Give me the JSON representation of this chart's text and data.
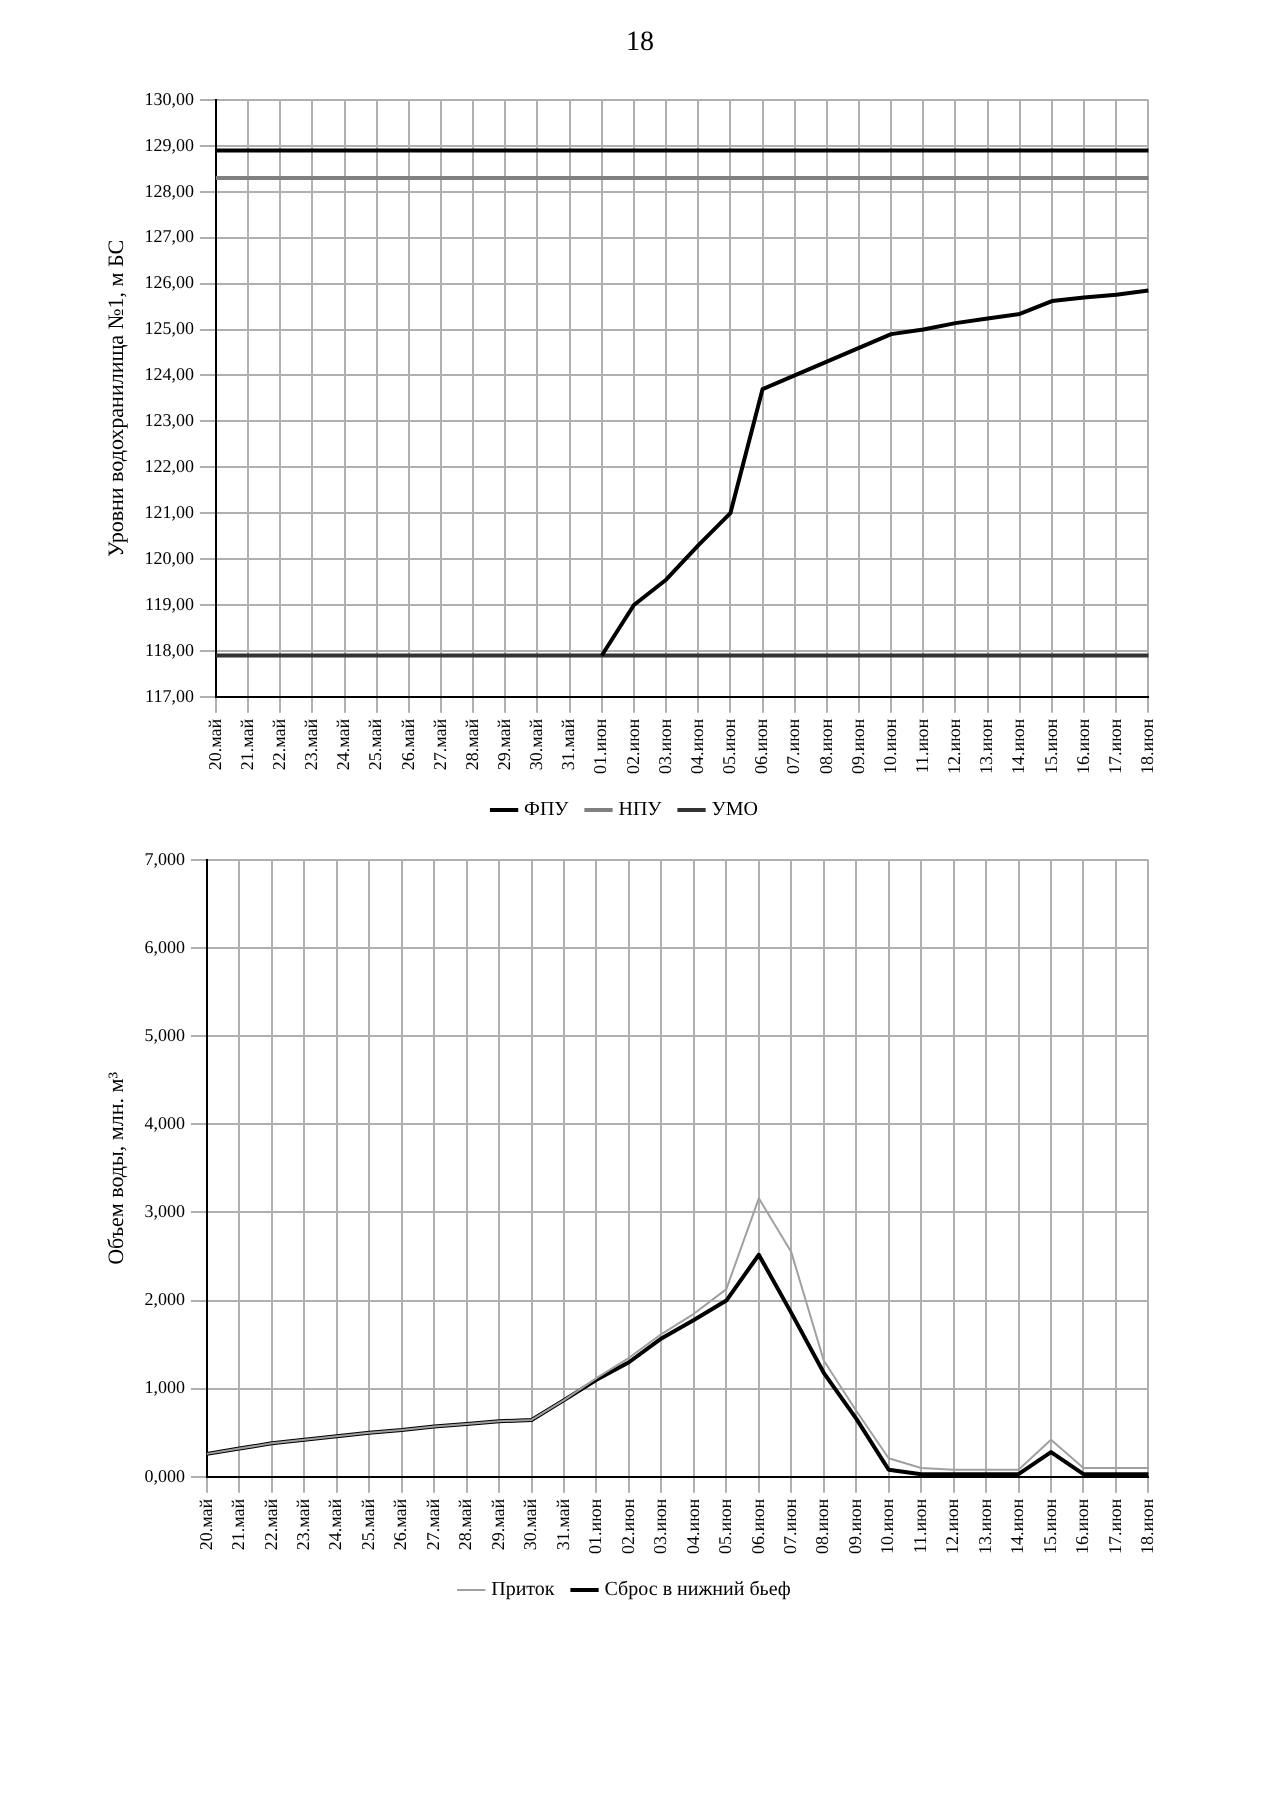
{
  "chart_data": [
    {
      "type": "line",
      "annotations": [
        "18"
      ],
      "ylabel": "Уровни водохранилища №1, м БС",
      "categories": [
        "20.май",
        "21.май",
        "22.май",
        "23.май",
        "24.май",
        "25.май",
        "26.май",
        "27.май",
        "28.май",
        "29.май",
        "30.май",
        "31.май",
        "01.июн",
        "02.июн",
        "03.июн",
        "04.июн",
        "05.июн",
        "06.июн",
        "07.июн",
        "08.июн",
        "09.июн",
        "10.июн",
        "11.июн",
        "12.июн",
        "13.июн",
        "14.июн",
        "15.июн",
        "16.июн",
        "17.июн",
        "18.июн"
      ],
      "series": [
        {
          "color": "#000000",
          "values": [
            null,
            null,
            null,
            null,
            null,
            null,
            null,
            null,
            null,
            null,
            null,
            null,
            117.9,
            119.0,
            119.55,
            120.3,
            121.0,
            123.7,
            124.0,
            124.3,
            124.6,
            124.9,
            125.0,
            125.14,
            125.24,
            125.34,
            125.62,
            125.7,
            125.76,
            125.85
          ]
        },
        {
          "name": "ФПУ",
          "color": "#000000",
          "values": [
            128.9,
            128.9,
            128.9,
            128.9,
            128.9,
            128.9,
            128.9,
            128.9,
            128.9,
            128.9,
            128.9,
            128.9,
            128.9,
            128.9,
            128.9,
            128.9,
            128.9,
            128.9,
            128.9,
            128.9,
            128.9,
            128.9,
            128.9,
            128.9,
            128.9,
            128.9,
            128.9,
            128.9,
            128.9,
            128.9
          ]
        },
        {
          "name": "НПУ",
          "color": "#808080",
          "values": [
            128.3,
            128.3,
            128.3,
            128.3,
            128.3,
            128.3,
            128.3,
            128.3,
            128.3,
            128.3,
            128.3,
            128.3,
            128.3,
            128.3,
            128.3,
            128.3,
            128.3,
            128.3,
            128.3,
            128.3,
            128.3,
            128.3,
            128.3,
            128.3,
            128.3,
            128.3,
            128.3,
            128.3,
            128.3,
            128.3
          ]
        },
        {
          "name": "УМО",
          "color": "#333333",
          "values": [
            117.9,
            117.9,
            117.9,
            117.9,
            117.9,
            117.9,
            117.9,
            117.9,
            117.9,
            117.9,
            117.9,
            117.9,
            117.9,
            117.9,
            117.9,
            117.9,
            117.9,
            117.9,
            117.9,
            117.9,
            117.9,
            117.9,
            117.9,
            117.9,
            117.9,
            117.9,
            117.9,
            117.9,
            117.9,
            117.9
          ]
        }
      ],
      "ylim": [
        117,
        130
      ],
      "yticks": [
        {
          "value": 117,
          "label": "117,00"
        },
        {
          "value": 118,
          "label": "118,00"
        },
        {
          "value": 119,
          "label": "119,00"
        },
        {
          "value": 120,
          "label": "120,00"
        },
        {
          "value": 121,
          "label": "121,00"
        },
        {
          "value": 122,
          "label": "122,00"
        },
        {
          "value": 123,
          "label": "123,00"
        },
        {
          "value": 124,
          "label": "124,00"
        },
        {
          "value": 125,
          "label": "125,00"
        },
        {
          "value": 126,
          "label": "126,00"
        },
        {
          "value": 127,
          "label": "127,00"
        },
        {
          "value": 128,
          "label": "128,00"
        },
        {
          "value": 129,
          "label": "129,00"
        },
        {
          "value": 130,
          "label": "130,00"
        }
      ],
      "grid": true,
      "legend": "bottom",
      "marker": "none",
      "line_style": "solid"
    },
    {
      "type": "line",
      "ylabel": "Объем воды, млн. м³",
      "categories": [
        "20.май",
        "21.май",
        "22.май",
        "23.май",
        "24.май",
        "25.май",
        "26.май",
        "27.май",
        "28.май",
        "29.май",
        "30.май",
        "31.май",
        "01.июн",
        "02.июн",
        "03.июн",
        "04.июн",
        "05.июн",
        "06.июн",
        "07.июн",
        "08.июн",
        "09.июн",
        "10.июн",
        "11.июн",
        "12.июн",
        "13.июн",
        "14.июн",
        "15.июн",
        "16.июн",
        "17.июн",
        "18.июн"
      ],
      "series": [
        {
          "name": "Приток",
          "color": "#a0a0a0",
          "values": [
            0.26,
            0.32,
            0.38,
            0.42,
            0.46,
            0.5,
            0.53,
            0.57,
            0.6,
            0.63,
            0.645,
            0.87,
            1.12,
            1.35,
            1.62,
            1.85,
            2.13,
            3.16,
            2.55,
            1.32,
            0.75,
            0.21,
            0.1,
            0.08,
            0.08,
            0.08,
            0.42,
            0.1,
            0.1,
            0.1
          ]
        },
        {
          "name": "Сброс в нижний бьеф",
          "color": "#000000",
          "values": [
            0.26,
            0.32,
            0.38,
            0.42,
            0.46,
            0.5,
            0.53,
            0.57,
            0.6,
            0.63,
            0.645,
            0.87,
            1.1,
            1.3,
            1.57,
            1.78,
            2.0,
            2.52,
            1.86,
            1.18,
            0.66,
            0.08,
            0.03,
            0.03,
            0.03,
            0.03,
            0.28,
            0.03,
            0.03,
            0.03
          ]
        }
      ],
      "ylim": [
        0,
        7
      ],
      "yticks": [
        {
          "value": 0,
          "label": "0,000"
        },
        {
          "value": 1,
          "label": "1,000"
        },
        {
          "value": 2,
          "label": "2,000"
        },
        {
          "value": 3,
          "label": "3,000"
        },
        {
          "value": 4,
          "label": "4,000"
        },
        {
          "value": 5,
          "label": "5,000"
        },
        {
          "value": 6,
          "label": "6,000"
        },
        {
          "value": 7,
          "label": "7,000"
        }
      ],
      "grid": true,
      "legend": "bottom",
      "marker": "none",
      "line_style": "solid"
    }
  ]
}
